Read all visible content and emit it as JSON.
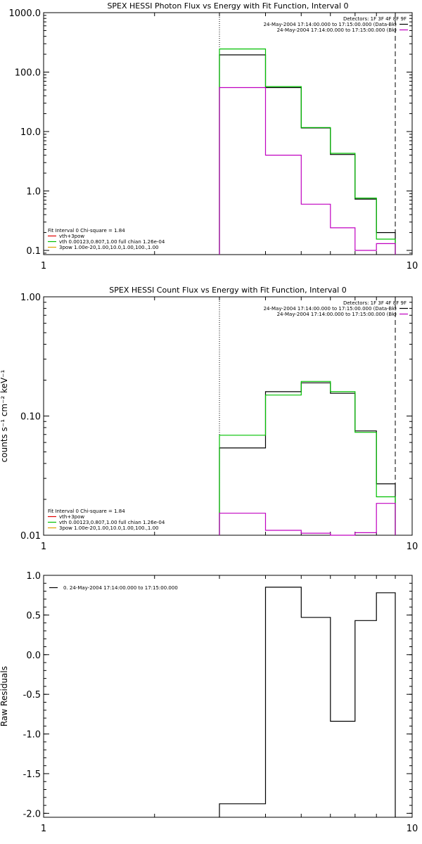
{
  "chart_data": [
    {
      "type": "line",
      "title": "SPEX HESSI Photon Flux vs Energy with Fit Function, Interval 0",
      "xlabel": "",
      "ylabel": "",
      "xscale": "log",
      "yscale": "log",
      "xlim": [
        1,
        10
      ],
      "ylim": [
        0.085,
        1000
      ],
      "yticks": [
        0.1,
        1,
        10,
        100,
        1000
      ],
      "ytick_labels": [
        "0.1",
        "1.0",
        "10.0",
        "100.0",
        "1000.0"
      ],
      "xticks": [
        1,
        10
      ],
      "xtick_labels": [
        "1",
        "10"
      ],
      "vlines": [
        {
          "x": 3.0,
          "style": "dotted"
        },
        {
          "x": 9.0,
          "style": "dashed"
        }
      ],
      "detectors_text": "Detectors: 1F 3F 4F 8F 9F",
      "legend_top": [
        {
          "text": "24-May-2004 17:14:00.000 to 17:15:00.000 (Data-Bk)",
          "color": "#000000"
        },
        {
          "text": "24-May-2004 17:14:00.000 to 17:15:00.000 (Bk)",
          "color": "#c000c0"
        }
      ],
      "legend_bottom_title": "Fit Interval  0    Chi-square = 1.84",
      "legend_bottom": [
        {
          "text": "vth+3pow",
          "color": "#e00000"
        },
        {
          "text": "vth 0.00123,0.807,1.00  full chian 1.26e-04",
          "color": "#00c000"
        },
        {
          "text": "3pow 1.00e-20,1.00,10.0,1.00,100.,1.00",
          "color": "#e0a000"
        }
      ],
      "series": [
        {
          "color": "#000000",
          "edges": [
            3,
            4,
            5,
            6,
            7,
            8,
            9
          ],
          "values": [
            195,
            55,
            11.5,
            4.1,
            0.73,
            0.2
          ]
        },
        {
          "color": "#00c000",
          "edges": [
            3,
            4,
            5,
            6,
            7,
            8,
            9
          ],
          "values": [
            245,
            57,
            11.7,
            4.3,
            0.76,
            0.155
          ]
        },
        {
          "color": "#c000c0",
          "edges": [
            3,
            4,
            5,
            6,
            7,
            8,
            9
          ],
          "values": [
            55,
            4.0,
            0.6,
            0.24,
            0.1,
            0.13
          ]
        }
      ]
    },
    {
      "type": "line",
      "title": "SPEX HESSI Count Flux vs Energy with Fit Function, Interval 0",
      "xlabel": "",
      "ylabel": "counts s⁻¹ cm⁻² keV⁻¹",
      "xscale": "log",
      "yscale": "log",
      "xlim": [
        1,
        10
      ],
      "ylim": [
        0.01,
        1.0
      ],
      "yticks": [
        0.01,
        0.1,
        1.0
      ],
      "ytick_labels": [
        "0.01",
        "0.10",
        "1.00"
      ],
      "xticks": [
        1,
        10
      ],
      "xtick_labels": [
        "1",
        "10"
      ],
      "vlines": [
        {
          "x": 3.0,
          "style": "dotted"
        },
        {
          "x": 9.0,
          "style": "dashed"
        }
      ],
      "detectors_text": "Detectors: 1F 3F 4F 8F 9F",
      "legend_top": [
        {
          "text": "24-May-2004 17:14:00.000 to 17:15:00.000 (Data-Bk)",
          "color": "#000000"
        },
        {
          "text": "24-May-2004 17:14:00.000 to 17:15:00.000 (Bk)",
          "color": "#c000c0"
        }
      ],
      "legend_bottom_title": "Fit Interval  0    Chi-square = 1.84",
      "legend_bottom": [
        {
          "text": "vth+3pow",
          "color": "#e00000"
        },
        {
          "text": "vth 0.00123,0.807,1.00  full chian 1.26e-04",
          "color": "#00c000"
        },
        {
          "text": "3pow 1.00e-20,1.00,10.0,1.00,100.,1.00",
          "color": "#e0a000"
        }
      ],
      "series": [
        {
          "color": "#000000",
          "edges": [
            3,
            4,
            5,
            6,
            7,
            8,
            9
          ],
          "values": [
            0.054,
            0.16,
            0.19,
            0.155,
            0.075,
            0.027
          ]
        },
        {
          "color": "#00c000",
          "edges": [
            3,
            4,
            5,
            6,
            7,
            8,
            9
          ],
          "values": [
            0.069,
            0.15,
            0.195,
            0.16,
            0.073,
            0.021
          ]
        },
        {
          "color": "#c000c0",
          "edges": [
            3,
            4,
            5,
            6,
            7,
            8,
            9
          ],
          "values": [
            0.0153,
            0.011,
            0.0104,
            0.0099,
            0.0105,
            0.0185
          ]
        }
      ]
    },
    {
      "type": "line",
      "title": "",
      "xlabel": "",
      "ylabel": "Raw Residuals",
      "xscale": "log",
      "yscale": "linear",
      "xlim": [
        1,
        10
      ],
      "ylim": [
        -2.05,
        1.0
      ],
      "yticks": [
        1.0,
        0.5,
        0.0,
        -0.5,
        -1.0,
        -1.5,
        -2.0
      ],
      "ytick_labels": [
        "1.0",
        "0.5",
        "0.0",
        "-0.5",
        "-1.0",
        "-1.5",
        "-2.0"
      ],
      "xticks": [
        1,
        10
      ],
      "xtick_labels": [
        "1",
        "10"
      ],
      "vlines": [],
      "legend_top": [
        {
          "text": "0. 24-May-2004 17:14:00.000 to 17:15:00.000",
          "color": "#000000"
        }
      ],
      "series": [
        {
          "color": "#000000",
          "edges": [
            3,
            4,
            5,
            6,
            7,
            8,
            9
          ],
          "values": [
            -1.88,
            0.85,
            0.47,
            -0.84,
            0.43,
            0.78
          ]
        }
      ]
    }
  ]
}
